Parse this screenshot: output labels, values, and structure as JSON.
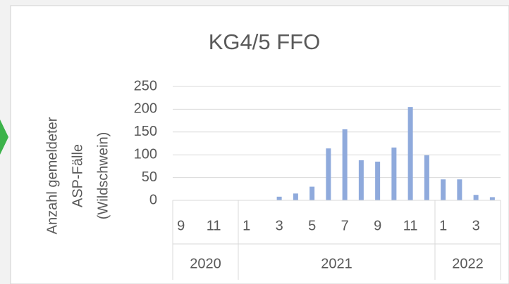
{
  "chart_data": {
    "type": "bar",
    "title": "KG4/5 FFO",
    "ylabel": [
      "Anzahl gemeldeter",
      "ASP-Fälle",
      "(Wildschwein)"
    ],
    "categories": [
      "9",
      null,
      "11",
      null,
      "1",
      null,
      "3",
      null,
      "5",
      null,
      "7",
      null,
      "9",
      null,
      "11",
      null,
      "1",
      null,
      "3",
      null
    ],
    "groups": [
      {
        "label": "2020",
        "span": 4
      },
      {
        "label": "2021",
        "span": 12
      },
      {
        "label": "2022",
        "span": 4
      }
    ],
    "values": [
      0,
      0,
      0,
      0,
      0,
      0,
      8,
      15,
      30,
      114,
      156,
      88,
      85,
      116,
      205,
      99,
      46,
      46,
      12,
      7
    ],
    "color": "#8faadc",
    "ylim": [
      0,
      250
    ],
    "yticks": [
      0,
      50,
      100,
      150,
      200,
      250
    ],
    "grid": true
  }
}
